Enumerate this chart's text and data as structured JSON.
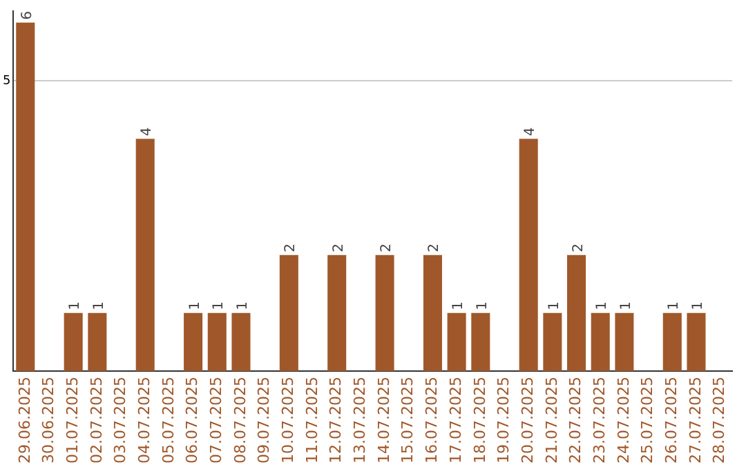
{
  "chart_data": {
    "type": "bar",
    "categories": [
      "29.06.2025",
      "30.06.2025",
      "01.07.2025",
      "02.07.2025",
      "03.07.2025",
      "04.07.2025",
      "05.07.2025",
      "06.07.2025",
      "07.07.2025",
      "08.07.2025",
      "09.07.2025",
      "10.07.2025",
      "11.07.2025",
      "12.07.2025",
      "13.07.2025",
      "14.07.2025",
      "15.07.2025",
      "16.07.2025",
      "17.07.2025",
      "18.07.2025",
      "19.07.2025",
      "20.07.2025",
      "21.07.2025",
      "22.07.2025",
      "23.07.2025",
      "24.07.2025",
      "25.07.2025",
      "26.07.2025",
      "27.07.2025",
      "28.07.2025"
    ],
    "values": [
      6,
      0,
      1,
      1,
      0,
      4,
      0,
      1,
      1,
      1,
      0,
      2,
      0,
      2,
      0,
      2,
      0,
      2,
      1,
      1,
      0,
      4,
      1,
      2,
      1,
      1,
      0,
      1,
      1,
      0
    ],
    "value_labels": [
      "6",
      null,
      "1",
      "1",
      null,
      "4",
      null,
      "1",
      "1",
      "1",
      null,
      "2",
      null,
      "2",
      null,
      "2",
      null,
      "2",
      "1",
      "1",
      null,
      "4",
      "1",
      "2",
      "1",
      "1",
      null,
      "1",
      "1",
      null
    ],
    "color": "#a0582a",
    "ylim": [
      0,
      6.2
    ],
    "yticks": [
      5
    ],
    "grid": "y",
    "legend": false
  }
}
